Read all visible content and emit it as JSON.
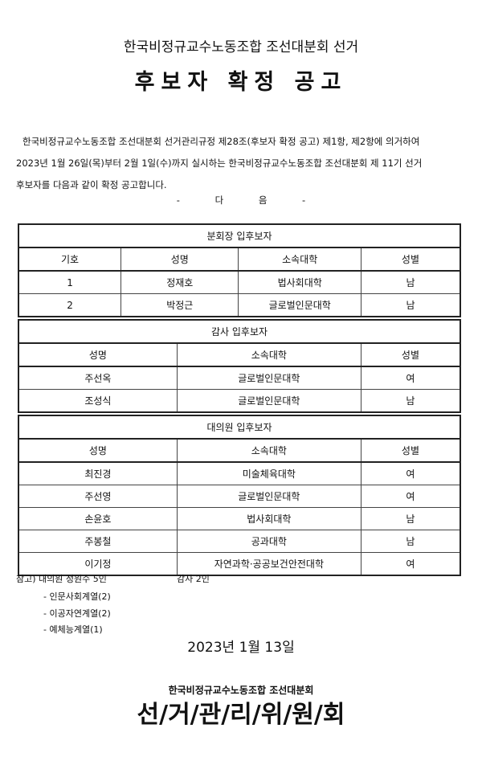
{
  "header": {
    "subtitle": "한국비정규교수노동조합 조선대분회 선거",
    "title": "후보자 확정 공고"
  },
  "body": {
    "lines": [
      "한국비정규교수노동조합 조선대분회 선거관리규정 제28조(후보자 확정 공고) 제1항, 제2항에 의거하여",
      "2023년 1월 26일(목)부터 2월 1일(수)까지 실시하는 한국비정규교수노동조합 조선대분회 제 11기 선거",
      "후보자를 다음과 같이 확정 공고합니다."
    ],
    "da": "- 다 음 -"
  },
  "tables": [
    {
      "caption": "분회장 입후보자",
      "headers": [
        "기호",
        "성명",
        "소속대학",
        "성별"
      ],
      "rows": [
        [
          "1",
          "정재호",
          "법사회대학",
          "남"
        ],
        [
          "2",
          "박정근",
          "글로벌인문대학",
          "남"
        ]
      ]
    },
    {
      "caption": "감사 입후보자",
      "headers": [
        "성명",
        "소속대학",
        "성별"
      ],
      "rows": [
        [
          "주선옥",
          "글로벌인문대학",
          "여"
        ],
        [
          "조성식",
          "글로벌인문대학",
          "남"
        ]
      ]
    },
    {
      "caption": "대의원 입후보자",
      "headers": [
        "성명",
        "소속대학",
        "성별"
      ],
      "rows": [
        [
          "최진경",
          "미술체육대학",
          "여"
        ],
        [
          "주선영",
          "글로벌인문대학",
          "여"
        ],
        [
          "손윤호",
          "법사회대학",
          "남"
        ],
        [
          "주봉철",
          "공과대학",
          "남"
        ],
        [
          "이기정",
          "자연과학·공공보건안전대학",
          "여"
        ]
      ]
    }
  ],
  "notes": {
    "first": "참고) 대의원 정원수 5인",
    "audit": "감사 2인",
    "items": [
      "- 인문사회계열(2)",
      "- 이공자연계열(2)",
      "- 예체능계열(1)"
    ]
  },
  "footer": {
    "date": "2023년 1월 13일",
    "org": "한국비정규교수노동조합 조선대분회",
    "committee": "선/거/관/리/위/원/회"
  }
}
